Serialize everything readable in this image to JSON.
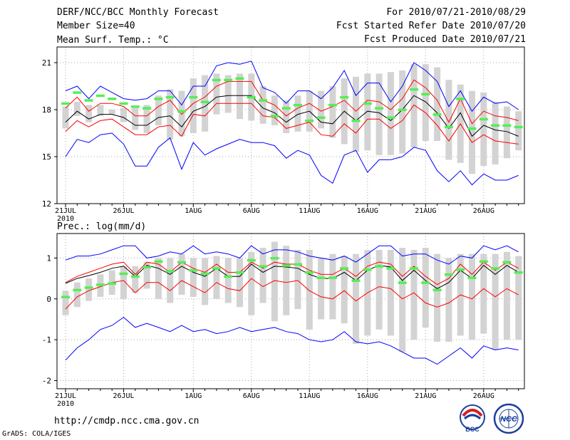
{
  "header": {
    "title": "DERF/NCC/BCC Monthly Forecast",
    "member_size": "Member Size=40",
    "forecast_period": "For 2010/07/21-2010/08/29",
    "started_date": "Fcst Started Refer Date 2010/07/20",
    "produced_date": "Fcst Produced Date 2010/07/21"
  },
  "footer": {
    "url": "http://cmdp.ncc.cma.gov.cn",
    "credit": "GrADS: COLA/IGES",
    "logo_bcc": "BCC",
    "logo_ncc": "NCC"
  },
  "colors": {
    "max_min": "#0000ff",
    "percentile": "#ff0000",
    "mean": "#000000",
    "observed": "#55ee55",
    "spread": "#d3d3d3"
  },
  "chart_data": [
    {
      "type": "line",
      "title": "Mean Surf. Temp.: °C",
      "x": [
        "21JUL",
        "22JUL",
        "23JUL",
        "24JUL",
        "25JUL",
        "26JUL",
        "27JUL",
        "28JUL",
        "29JUL",
        "30JUL",
        "31JUL",
        "1AUG",
        "2AUG",
        "3AUG",
        "4AUG",
        "5AUG",
        "6AUG",
        "7AUG",
        "8AUG",
        "9AUG",
        "10AUG",
        "11AUG",
        "12AUG",
        "13AUG",
        "14AUG",
        "15AUG",
        "16AUG",
        "17AUG",
        "18AUG",
        "19AUG",
        "20AUG",
        "21AUG",
        "22AUG",
        "23AUG",
        "24AUG",
        "25AUG",
        "26AUG",
        "27AUG",
        "28AUG",
        "29AUG"
      ],
      "xticks": [
        "21JUL",
        "26JUL",
        "1AUG",
        "6AUG",
        "11AUG",
        "16AUG",
        "21AUG",
        "26AUG"
      ],
      "xtick_sublabel": "2010",
      "ylim": [
        12,
        22
      ],
      "yticks": [
        12,
        15,
        18,
        21
      ],
      "grid": true,
      "series": [
        {
          "name": "max",
          "color": "#0000ff",
          "values": [
            19.2,
            19.5,
            18.7,
            19.5,
            19.1,
            18.7,
            18.6,
            18.7,
            19.2,
            19.2,
            18.3,
            19.5,
            19.5,
            20.8,
            21.0,
            20.9,
            21.1,
            19.4,
            19.1,
            18.4,
            19.2,
            19.2,
            18.7,
            19.4,
            20.5,
            18.9,
            19.7,
            19.7,
            18.5,
            19.5,
            21.0,
            20.5,
            19.8,
            18.2,
            19.2,
            17.9,
            18.8,
            18.4,
            18.5,
            18.0
          ]
        },
        {
          "name": "p90",
          "color": "#ff0000",
          "values": [
            18.1,
            18.8,
            17.9,
            18.4,
            18.4,
            18.2,
            17.6,
            17.6,
            18.2,
            18.6,
            17.7,
            18.4,
            18.8,
            19.5,
            19.8,
            19.8,
            19.8,
            18.6,
            18.3,
            17.6,
            18.1,
            18.4,
            17.9,
            18.2,
            18.6,
            17.9,
            18.6,
            18.5,
            18.0,
            18.7,
            19.9,
            19.4,
            18.6,
            17.2,
            18.7,
            17.1,
            17.9,
            17.6,
            17.5,
            17.3
          ]
        },
        {
          "name": "mean",
          "color": "#000000",
          "values": [
            17.2,
            17.9,
            17.4,
            17.7,
            17.7,
            17.5,
            17.0,
            17.0,
            17.5,
            17.6,
            16.9,
            17.9,
            18.2,
            18.8,
            18.9,
            18.9,
            18.9,
            18.1,
            17.8,
            17.2,
            17.7,
            17.9,
            17.2,
            17.1,
            17.9,
            17.3,
            17.9,
            17.8,
            17.3,
            18.0,
            18.9,
            18.5,
            17.8,
            16.8,
            17.8,
            16.3,
            17.0,
            16.7,
            16.6,
            16.3
          ]
        },
        {
          "name": "p10",
          "color": "#ff0000",
          "values": [
            16.6,
            17.3,
            16.9,
            17.3,
            17.4,
            16.9,
            16.4,
            16.4,
            16.9,
            17.0,
            16.3,
            17.7,
            17.6,
            18.4,
            18.4,
            18.4,
            18.4,
            17.6,
            17.5,
            16.8,
            17.0,
            17.2,
            16.4,
            16.3,
            17.1,
            16.5,
            17.4,
            17.4,
            16.8,
            17.3,
            18.3,
            17.8,
            17.0,
            16.0,
            17.1,
            15.9,
            16.4,
            16.0,
            15.9,
            15.8
          ]
        },
        {
          "name": "min",
          "color": "#0000ff",
          "values": [
            15.0,
            16.1,
            15.9,
            16.4,
            16.5,
            15.8,
            14.4,
            14.4,
            15.6,
            16.2,
            14.2,
            15.9,
            15.1,
            15.5,
            15.8,
            16.1,
            15.9,
            15.9,
            15.7,
            14.9,
            15.4,
            15.1,
            13.8,
            13.3,
            15.1,
            15.4,
            14.0,
            14.8,
            14.8,
            15.0,
            15.6,
            15.4,
            14.1,
            13.4,
            14.1,
            13.2,
            13.9,
            13.5,
            13.5,
            13.8
          ]
        },
        {
          "name": "spread_low",
          "color": "#d3d3d3",
          "values": [
            16.8,
            17.6,
            17.2,
            17.6,
            17.7,
            17.2,
            16.7,
            16.5,
            17.0,
            16.1,
            16.3,
            16.5,
            16.6,
            17.7,
            17.8,
            17.4,
            17.3,
            17.1,
            17.0,
            16.5,
            16.6,
            16.6,
            16.8,
            16.2,
            15.8,
            15.3,
            15.4,
            15.1,
            15.1,
            15.2,
            15.6,
            16.0,
            16.0,
            14.8,
            14.6,
            13.9,
            14.4,
            14.5,
            14.9,
            15.4
          ]
        },
        {
          "name": "spread_high",
          "color": "#d3d3d3",
          "values": [
            18.2,
            18.5,
            18.3,
            18.3,
            18.0,
            18.1,
            18.1,
            18.3,
            18.9,
            19.3,
            19.2,
            20.0,
            20.2,
            20.3,
            20.2,
            20.3,
            20.3,
            19.5,
            18.9,
            18.6,
            18.9,
            19.2,
            19.2,
            19.5,
            20.0,
            20.1,
            20.3,
            20.3,
            20.4,
            20.5,
            20.9,
            20.9,
            20.7,
            19.9,
            19.6,
            19.2,
            19.1,
            18.5,
            18.2,
            17.9
          ]
        },
        {
          "name": "observed",
          "color": "#55ee55",
          "values": [
            18.4,
            19.1,
            18.6,
            18.9,
            18.7,
            18.4,
            18.2,
            18.1,
            18.7,
            18.8,
            17.9,
            18.8,
            18.5,
            19.9,
            19.9,
            20.0,
            18.8,
            18.6,
            17.6,
            18.1,
            18.3,
            17.3,
            17.5,
            18.3,
            18.8,
            17.3,
            18.4,
            18.1,
            17.5,
            18.0,
            19.3,
            19.0,
            17.7,
            16.9,
            18.7,
            16.8,
            17.4,
            17.0,
            17.0,
            16.9
          ]
        }
      ]
    },
    {
      "type": "line",
      "title": "Prec.: log(mm/d)",
      "x": [
        "21JUL",
        "22JUL",
        "23JUL",
        "24JUL",
        "25JUL",
        "26JUL",
        "27JUL",
        "28JUL",
        "29JUL",
        "30JUL",
        "31JUL",
        "1AUG",
        "2AUG",
        "3AUG",
        "4AUG",
        "5AUG",
        "6AUG",
        "7AUG",
        "8AUG",
        "9AUG",
        "10AUG",
        "11AUG",
        "12AUG",
        "13AUG",
        "14AUG",
        "15AUG",
        "16AUG",
        "17AUG",
        "18AUG",
        "19AUG",
        "20AUG",
        "21AUG",
        "22AUG",
        "23AUG",
        "24AUG",
        "25AUG",
        "26AUG",
        "27AUG",
        "28AUG",
        "29AUG"
      ],
      "xticks": [
        "21JUL",
        "26JUL",
        "1AUG",
        "6AUG",
        "11AUG",
        "16AUG",
        "21AUG",
        "26AUG"
      ],
      "xtick_sublabel": "2010",
      "ylim": [
        -2.2,
        1.6
      ],
      "yticks": [
        -2,
        -1,
        0,
        1
      ],
      "grid": true,
      "series": [
        {
          "name": "max",
          "color": "#0000ff",
          "values": [
            0.95,
            1.05,
            1.05,
            1.1,
            1.2,
            1.3,
            1.3,
            1.0,
            1.05,
            1.15,
            1.1,
            1.3,
            1.1,
            1.15,
            1.1,
            1.0,
            1.3,
            1.1,
            1.2,
            1.2,
            1.15,
            1.05,
            1.0,
            0.95,
            1.05,
            0.9,
            1.1,
            1.3,
            1.3,
            1.05,
            1.1,
            1.1,
            0.95,
            0.85,
            1.05,
            1.0,
            1.3,
            1.2,
            1.3,
            1.15
          ]
        },
        {
          "name": "p90",
          "color": "#ff0000",
          "values": [
            0.4,
            0.55,
            0.65,
            0.75,
            0.85,
            0.9,
            0.6,
            0.9,
            0.85,
            0.65,
            0.9,
            0.75,
            0.65,
            0.85,
            0.65,
            0.65,
            0.9,
            0.75,
            0.9,
            0.85,
            0.85,
            0.7,
            0.6,
            0.6,
            0.75,
            0.55,
            0.8,
            0.9,
            0.85,
            0.55,
            0.8,
            0.55,
            0.35,
            0.5,
            0.85,
            0.6,
            0.9,
            0.7,
            0.9,
            0.75
          ]
        },
        {
          "name": "mean",
          "color": "#000000",
          "values": [
            0.38,
            0.5,
            0.57,
            0.65,
            0.75,
            0.8,
            0.55,
            0.82,
            0.75,
            0.6,
            0.8,
            0.65,
            0.55,
            0.75,
            0.55,
            0.55,
            0.85,
            0.65,
            0.8,
            0.78,
            0.75,
            0.6,
            0.5,
            0.5,
            0.65,
            0.45,
            0.7,
            0.82,
            0.78,
            0.45,
            0.7,
            0.45,
            0.25,
            0.4,
            0.7,
            0.5,
            0.82,
            0.6,
            0.82,
            0.65
          ]
        },
        {
          "name": "p10",
          "color": "#ff0000",
          "values": [
            -0.25,
            0.05,
            0.2,
            0.3,
            0.4,
            0.45,
            0.15,
            0.4,
            0.4,
            0.2,
            0.45,
            0.3,
            0.15,
            0.4,
            0.25,
            0.2,
            0.5,
            0.3,
            0.45,
            0.4,
            0.45,
            0.2,
            0.05,
            0.0,
            0.2,
            -0.05,
            0.15,
            0.3,
            0.25,
            0.0,
            0.15,
            -0.1,
            -0.2,
            -0.1,
            0.1,
            0.0,
            0.25,
            0.05,
            0.25,
            0.1
          ]
        },
        {
          "name": "min",
          "color": "#0000ff",
          "values": [
            -1.5,
            -1.2,
            -1.0,
            -0.75,
            -0.65,
            -0.45,
            -0.7,
            -0.6,
            -0.7,
            -0.8,
            -0.65,
            -0.8,
            -0.75,
            -0.85,
            -0.8,
            -0.7,
            -0.8,
            -0.75,
            -0.7,
            -0.8,
            -0.85,
            -1.0,
            -1.05,
            -1.0,
            -0.8,
            -1.05,
            -1.1,
            -1.05,
            -1.15,
            -1.3,
            -1.45,
            -1.45,
            -1.6,
            -1.4,
            -1.2,
            -1.45,
            -1.15,
            -1.25,
            -1.2,
            -1.25
          ]
        },
        {
          "name": "spread_low",
          "color": "#d3d3d3",
          "values": [
            -0.4,
            -0.2,
            -0.05,
            0.05,
            0.1,
            0.0,
            0.15,
            0.25,
            0.0,
            -0.1,
            0.1,
            0.05,
            -0.15,
            0.0,
            -0.1,
            -0.2,
            -0.4,
            -0.1,
            -0.55,
            -0.4,
            -0.25,
            -0.75,
            -0.5,
            -0.5,
            -0.6,
            -1.1,
            -0.9,
            -0.75,
            -0.9,
            -1.3,
            -1.0,
            -0.7,
            -1.05,
            -1.05,
            -0.9,
            -1.0,
            -0.85,
            -1.25,
            -1.0,
            -1.0
          ]
        },
        {
          "name": "spread_high",
          "color": "#d3d3d3",
          "values": [
            0.2,
            0.4,
            0.5,
            0.6,
            0.7,
            0.8,
            0.8,
            0.9,
            1.0,
            1.0,
            1.1,
            1.0,
            1.0,
            1.05,
            1.0,
            1.0,
            1.15,
            1.25,
            1.4,
            1.3,
            1.2,
            1.2,
            1.0,
            1.1,
            1.05,
            1.1,
            1.2,
            1.2,
            1.2,
            1.25,
            1.2,
            1.25,
            1.1,
            1.0,
            1.1,
            1.1,
            1.1,
            1.1,
            1.15,
            1.05
          ]
        },
        {
          "name": "observed",
          "color": "#55ee55",
          "values": [
            0.05,
            0.22,
            0.28,
            0.35,
            0.38,
            0.62,
            0.55,
            0.78,
            0.92,
            0.68,
            0.9,
            0.7,
            0.62,
            0.75,
            0.55,
            0.65,
            0.95,
            0.8,
            1.0,
            0.82,
            0.85,
            0.65,
            0.52,
            0.52,
            0.75,
            0.45,
            0.72,
            0.8,
            0.75,
            0.4,
            0.75,
            0.4,
            0.22,
            0.6,
            0.72,
            0.52,
            0.92,
            0.75,
            0.9,
            0.65
          ]
        }
      ]
    }
  ]
}
